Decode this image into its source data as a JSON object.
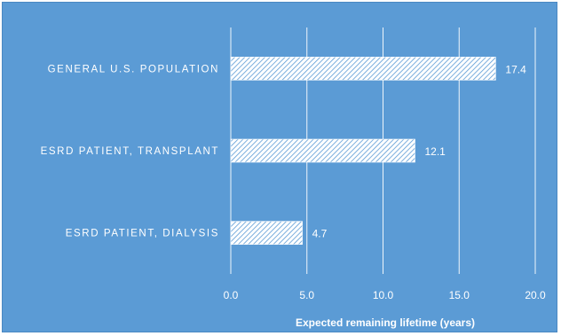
{
  "chart_data": {
    "type": "bar",
    "orientation": "horizontal",
    "categories": [
      "GENERAL U.S. POPULATION",
      "ESRD PATIENT, TRANSPLANT",
      "ESRD PATIENT, DIALYSIS"
    ],
    "values": [
      17.4,
      12.1,
      4.7
    ],
    "value_labels": [
      "17.4",
      "12.1",
      "4.7"
    ],
    "xlabel": "Expected remaining lifetime (years)",
    "ylabel": "",
    "xlim": [
      0,
      20
    ],
    "xticks": [
      "0.0",
      "5.0",
      "10.0",
      "15.0",
      "20.0"
    ],
    "grid": "vertical",
    "legend": "none",
    "colors": {
      "background": "#5b9bd5",
      "bar_fill": "#ffffff",
      "bar_hatch": "#5b9bd5",
      "text": "#ffffff"
    }
  }
}
